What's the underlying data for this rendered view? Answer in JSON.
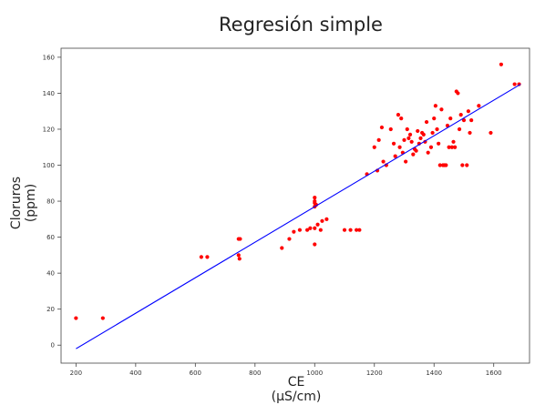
{
  "chart_data": {
    "type": "scatter",
    "title": "Regresión simple",
    "xlabel_line1": "CE",
    "xlabel_line2": "(µS/cm)",
    "ylabel_line1": "Cloruros",
    "ylabel_line2": "(ppm)",
    "xlim": [
      150,
      1720
    ],
    "ylim": [
      -10,
      165
    ],
    "x_ticks": [
      200,
      400,
      600,
      800,
      1000,
      1200,
      1400,
      1600
    ],
    "y_ticks": [
      0,
      20,
      40,
      60,
      80,
      100,
      120,
      140,
      160
    ],
    "grid": false,
    "colors": {
      "points": "#ff0000",
      "line": "#0000ff"
    },
    "regression_line": {
      "x": [
        200,
        1690
      ],
      "y": [
        -2,
        145
      ]
    },
    "points": [
      [
        200,
        15
      ],
      [
        290,
        15
      ],
      [
        620,
        49
      ],
      [
        640,
        49
      ],
      [
        745,
        59
      ],
      [
        750,
        59
      ],
      [
        745,
        50
      ],
      [
        748,
        48
      ],
      [
        890,
        54
      ],
      [
        915,
        59
      ],
      [
        930,
        63
      ],
      [
        950,
        64
      ],
      [
        975,
        64
      ],
      [
        985,
        65
      ],
      [
        1000,
        56
      ],
      [
        1000,
        65
      ],
      [
        1010,
        67
      ],
      [
        1020,
        64
      ],
      [
        1025,
        69
      ],
      [
        1040,
        70
      ],
      [
        1000,
        77
      ],
      [
        1000,
        79
      ],
      [
        1000,
        80
      ],
      [
        1000,
        82
      ],
      [
        1005,
        78
      ],
      [
        1100,
        64
      ],
      [
        1120,
        64
      ],
      [
        1140,
        64
      ],
      [
        1150,
        64
      ],
      [
        1175,
        95
      ],
      [
        1200,
        110
      ],
      [
        1210,
        97
      ],
      [
        1215,
        114
      ],
      [
        1225,
        121
      ],
      [
        1230,
        102
      ],
      [
        1240,
        100
      ],
      [
        1255,
        120
      ],
      [
        1265,
        112
      ],
      [
        1270,
        105
      ],
      [
        1280,
        128
      ],
      [
        1285,
        110
      ],
      [
        1290,
        126
      ],
      [
        1295,
        107
      ],
      [
        1300,
        114
      ],
      [
        1305,
        102
      ],
      [
        1310,
        120
      ],
      [
        1315,
        115
      ],
      [
        1320,
        117
      ],
      [
        1325,
        113
      ],
      [
        1330,
        106
      ],
      [
        1335,
        109
      ],
      [
        1340,
        108
      ],
      [
        1345,
        119
      ],
      [
        1350,
        112
      ],
      [
        1355,
        115
      ],
      [
        1360,
        118
      ],
      [
        1365,
        117
      ],
      [
        1370,
        113
      ],
      [
        1375,
        124
      ],
      [
        1380,
        107
      ],
      [
        1390,
        110
      ],
      [
        1395,
        118
      ],
      [
        1400,
        126
      ],
      [
        1405,
        133
      ],
      [
        1410,
        120
      ],
      [
        1415,
        112
      ],
      [
        1420,
        100
      ],
      [
        1425,
        131
      ],
      [
        1430,
        100
      ],
      [
        1435,
        100
      ],
      [
        1440,
        100
      ],
      [
        1445,
        122
      ],
      [
        1450,
        110
      ],
      [
        1455,
        126
      ],
      [
        1460,
        110
      ],
      [
        1465,
        113
      ],
      [
        1470,
        110
      ],
      [
        1475,
        141
      ],
      [
        1480,
        140
      ],
      [
        1485,
        120
      ],
      [
        1490,
        128
      ],
      [
        1495,
        100
      ],
      [
        1500,
        125
      ],
      [
        1510,
        100
      ],
      [
        1515,
        130
      ],
      [
        1520,
        118
      ],
      [
        1525,
        125
      ],
      [
        1550,
        133
      ],
      [
        1590,
        118
      ],
      [
        1625,
        156
      ],
      [
        1670,
        145
      ],
      [
        1685,
        145
      ]
    ]
  }
}
